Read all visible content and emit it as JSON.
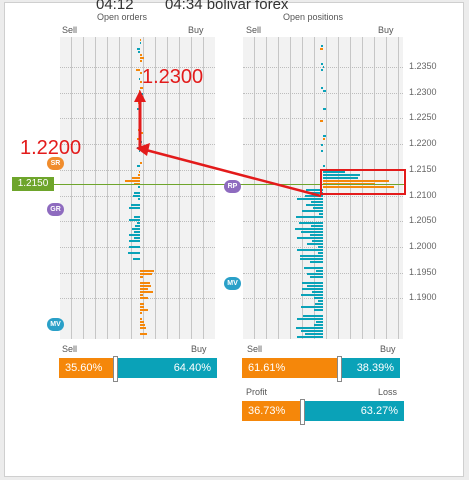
{
  "window": {
    "title_left": "04:12",
    "title_right": "04:34 bolivar forex"
  },
  "open_orders": {
    "title": "Open orders",
    "sell_label": "Sell",
    "buy_label": "Buy",
    "sell_pct": "35.60%",
    "buy_pct": "64.40%",
    "sell_fraction": 0.356,
    "markers": [
      {
        "label": "SR",
        "color": "#f08c2c"
      },
      {
        "label": "GR",
        "color": "#8e6bbf"
      },
      {
        "label": "MV",
        "color": "#2aa0c8"
      }
    ]
  },
  "open_positions": {
    "title": "Open positions",
    "sell_label": "Sell",
    "buy_label": "Buy",
    "sell_pct": "61.61%",
    "buy_pct": "38.39%",
    "sell_fraction": 0.6161,
    "profit_label": "Profit",
    "loss_label": "Loss",
    "profit_pct": "36.73%",
    "loss_pct": "63.27%",
    "profit_fraction": 0.3673,
    "markers": [
      {
        "label": "RP",
        "color": "#8e6bbf"
      },
      {
        "label": "MV",
        "color": "#2aa0c8"
      }
    ]
  },
  "price_axis": {
    "labels": [
      "1.2350",
      "1.2300",
      "1.2250",
      "1.2200",
      "1.2150",
      "1.2100",
      "1.2050",
      "1.2000",
      "1.1950",
      "1.1900"
    ]
  },
  "current_price": "1.2150",
  "annotations": {
    "target_1": "1.2300",
    "target_2": "1.2200"
  },
  "colors": {
    "sell": "#f5870a",
    "buy": "#0aa2b8",
    "current_price": "#6ea52b",
    "annotation": "#e31b1b"
  }
}
